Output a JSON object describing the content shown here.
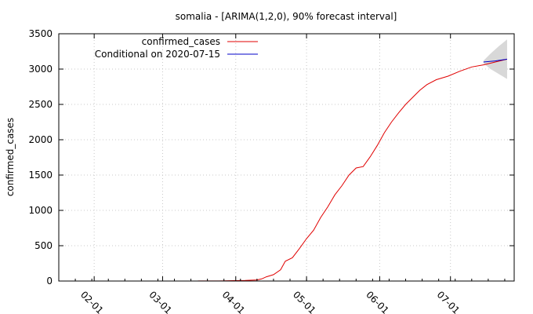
{
  "chart_data": {
    "type": "line",
    "title": "somalia -  [ARIMA(1,2,0), 90% forecast interval]",
    "ylabel": "confirmed_cases",
    "xlabel": "",
    "xlim": [
      "2020-01-17",
      "2020-07-28"
    ],
    "ylim": [
      0,
      3500
    ],
    "yticks": [
      0,
      500,
      1000,
      1500,
      2000,
      2500,
      3000,
      3500
    ],
    "xticks": [
      {
        "date": "2020-02-01",
        "label": "02-01"
      },
      {
        "date": "2020-03-01",
        "label": "03-01"
      },
      {
        "date": "2020-04-01",
        "label": "04-01"
      },
      {
        "date": "2020-05-01",
        "label": "05-01"
      },
      {
        "date": "2020-06-01",
        "label": "06-01"
      },
      {
        "date": "2020-07-01",
        "label": "07-01"
      }
    ],
    "grid": true,
    "legend_position": "top-left",
    "series": [
      {
        "name": "confirmed_cases",
        "color": "#e00000",
        "points": [
          [
            "2020-03-16",
            1
          ],
          [
            "2020-03-20",
            1
          ],
          [
            "2020-03-25",
            2
          ],
          [
            "2020-03-31",
            5
          ],
          [
            "2020-04-05",
            8
          ],
          [
            "2020-04-10",
            15
          ],
          [
            "2020-04-12",
            30
          ],
          [
            "2020-04-14",
            60
          ],
          [
            "2020-04-17",
            90
          ],
          [
            "2020-04-20",
            160
          ],
          [
            "2020-04-22",
            280
          ],
          [
            "2020-04-25",
            330
          ],
          [
            "2020-04-28",
            460
          ],
          [
            "2020-05-01",
            600
          ],
          [
            "2020-05-04",
            720
          ],
          [
            "2020-05-07",
            900
          ],
          [
            "2020-05-10",
            1050
          ],
          [
            "2020-05-13",
            1220
          ],
          [
            "2020-05-16",
            1350
          ],
          [
            "2020-05-19",
            1500
          ],
          [
            "2020-05-22",
            1600
          ],
          [
            "2020-05-25",
            1620
          ],
          [
            "2020-05-28",
            1760
          ],
          [
            "2020-05-31",
            1920
          ],
          [
            "2020-06-03",
            2100
          ],
          [
            "2020-06-06",
            2250
          ],
          [
            "2020-06-09",
            2380
          ],
          [
            "2020-06-12",
            2500
          ],
          [
            "2020-06-15",
            2600
          ],
          [
            "2020-06-18",
            2700
          ],
          [
            "2020-06-21",
            2780
          ],
          [
            "2020-06-25",
            2850
          ],
          [
            "2020-06-30",
            2900
          ],
          [
            "2020-07-05",
            2970
          ],
          [
            "2020-07-10",
            3030
          ],
          [
            "2020-07-15",
            3060
          ],
          [
            "2020-07-20",
            3100
          ],
          [
            "2020-07-25",
            3140
          ]
        ]
      },
      {
        "name": "Conditional on 2020-07-15",
        "color": "#0000c8",
        "points": [
          [
            "2020-07-15",
            3100
          ],
          [
            "2020-07-20",
            3115
          ],
          [
            "2020-07-25",
            3140
          ]
        ]
      }
    ],
    "forecast_interval": {
      "label": "90% forecast interval",
      "color": "#d8d8d8",
      "points": [
        [
          "2020-07-15",
          3080,
          3120
        ],
        [
          "2020-07-18",
          3000,
          3220
        ],
        [
          "2020-07-21",
          2940,
          3310
        ],
        [
          "2020-07-25",
          2860,
          3420
        ]
      ]
    }
  }
}
